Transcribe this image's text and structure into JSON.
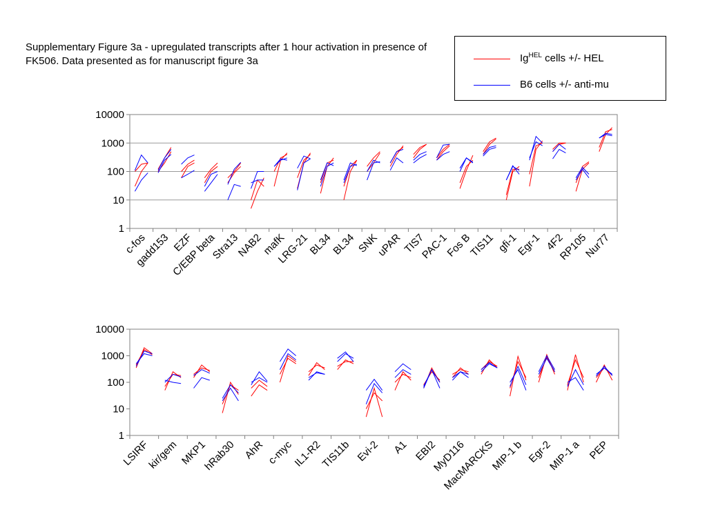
{
  "caption": "Supplementary Figure 3a - upregulated transcripts after 1 hour activation in presence of FK506. Data presented as for manuscript figure 3a",
  "legend": {
    "entries": [
      {
        "base": "Ig",
        "sup": "HEL",
        "rest": " cells +/- HEL",
        "color": "#ff0000"
      },
      {
        "base": "",
        "sup": "",
        "rest": "B6 cells +/- anti-mu",
        "color": "#0000ff"
      }
    ]
  },
  "chart_data": [
    {
      "type": "line",
      "scale": "log",
      "ylim": [
        1,
        10000
      ],
      "yticks": [
        1,
        10,
        100,
        1000,
        10000
      ],
      "grid": true,
      "colors": {
        "ig": "#ff0000",
        "b6": "#0000ff"
      },
      "categories": [
        "c-fos",
        "gadd153",
        "EZF",
        "C/EBP beta",
        "Stra13",
        "NAB2",
        "mafK",
        "LRG-21",
        "BL34",
        "BL34",
        "SNK",
        "uPAR",
        "TIS7",
        "PAC-1",
        "Fos B",
        "TIS11",
        "gfi-1",
        "Egr-1",
        "4F2",
        "RP105",
        "Nur77"
      ],
      "series": [
        {
          "group": "ig",
          "values": [
            [
              100,
              180,
              200
            ],
            [
              100,
              200,
              500
            ],
            [
              100,
              180,
              250
            ],
            [
              40,
              100,
              150
            ],
            [
              40,
              90,
              150
            ],
            [
              5,
              20,
              60
            ],
            [
              30,
              250,
              450
            ],
            [
              25,
              200,
              450
            ],
            [
              17,
              150,
              300
            ],
            [
              10,
              100,
              250
            ],
            [
              100,
              200,
              450
            ],
            [
              150,
              400,
              800
            ],
            [
              300,
              600,
              900
            ],
            [
              250,
              500,
              800
            ],
            [
              25,
              110,
              370
            ],
            [
              400,
              900,
              1400
            ],
            [
              10,
              100,
              150
            ],
            [
              30,
              600,
              1200
            ],
            [
              500,
              900,
              1000
            ],
            [
              20,
              120,
              200
            ],
            [
              500,
              2000,
              3500
            ]
          ]
        },
        {
          "group": "ig",
          "values": [
            [
              30,
              100,
              200
            ],
            [
              120,
              300,
              700
            ],
            [
              60,
              150,
              200
            ],
            [
              60,
              120,
              200
            ],
            [
              60,
              100,
              200
            ],
            [
              10,
              50,
              30
            ],
            [
              100,
              300,
              400
            ],
            [
              60,
              250,
              400
            ],
            [
              40,
              200,
              250
            ],
            [
              30,
              150,
              250
            ],
            [
              150,
              300,
              500
            ],
            [
              200,
              500,
              700
            ],
            [
              400,
              700,
              900
            ],
            [
              300,
              600,
              900
            ],
            [
              40,
              150,
              250
            ],
            [
              500,
              1100,
              1500
            ],
            [
              15,
              120,
              120
            ],
            [
              80,
              800,
              1000
            ],
            [
              600,
              1000,
              1000
            ],
            [
              40,
              150,
              220
            ],
            [
              700,
              2500,
              3000
            ]
          ]
        },
        {
          "group": "b6",
          "values": [
            [
              20,
              50,
              90
            ],
            [
              90,
              250,
              400
            ],
            [
              60,
              80,
              110
            ],
            [
              20,
              40,
              80
            ],
            [
              10,
              35,
              30
            ],
            [
              25,
              100,
              100
            ],
            [
              150,
              250,
              300
            ],
            [
              22,
              200,
              280
            ],
            [
              30,
              150,
              200
            ],
            [
              40,
              150,
              180
            ],
            [
              50,
              200,
              220
            ],
            [
              110,
              300,
              200
            ],
            [
              200,
              300,
              400
            ],
            [
              250,
              400,
              500
            ],
            [
              100,
              300,
              200
            ],
            [
              350,
              600,
              700
            ],
            [
              50,
              160,
              80
            ],
            [
              250,
              1700,
              1000
            ],
            [
              280,
              600,
              450
            ],
            [
              50,
              120,
              60
            ],
            [
              1500,
              2000,
              1800
            ]
          ]
        },
        {
          "group": "b6",
          "values": [
            [
              110,
              380,
              200
            ],
            [
              110,
              300,
              600
            ],
            [
              180,
              300,
              380
            ],
            [
              30,
              80,
              100
            ],
            [
              35,
              120,
              210
            ],
            [
              40,
              50,
              50
            ],
            [
              150,
              280,
              250
            ],
            [
              130,
              350,
              280
            ],
            [
              50,
              200,
              160
            ],
            [
              50,
              200,
              160
            ],
            [
              100,
              250,
              200
            ],
            [
              200,
              500,
              600
            ],
            [
              250,
              400,
              500
            ],
            [
              300,
              850,
              900
            ],
            [
              130,
              300,
              210
            ],
            [
              400,
              700,
              800
            ],
            [
              50,
              150,
              110
            ],
            [
              300,
              1100,
              800
            ],
            [
              500,
              900,
              600
            ],
            [
              60,
              140,
              80
            ],
            [
              1500,
              2200,
              2000
            ]
          ]
        }
      ]
    },
    {
      "type": "line",
      "scale": "log",
      "ylim": [
        1,
        10000
      ],
      "yticks": [
        1,
        10,
        100,
        1000,
        10000
      ],
      "grid": false,
      "colors": {
        "ig": "#ff0000",
        "b6": "#0000ff"
      },
      "categories": [
        "LSIRF",
        "kir/gem",
        "MKP1",
        "hRab30",
        "AhR",
        "c-myc",
        "IL1-R2",
        "TIS11b",
        "Evi-2",
        "A1",
        "EBI2",
        "MyD116",
        "MacMARCKS",
        "MIP-1 b",
        "Egr-2",
        "MIP-1 a",
        "PEP"
      ],
      "series": [
        {
          "group": "ig",
          "values": [
            [
              350,
              2000,
              1200
            ],
            [
              50,
              250,
              150
            ],
            [
              150,
              450,
              250
            ],
            [
              7,
              100,
              35
            ],
            [
              30,
              80,
              50
            ],
            [
              100,
              1000,
              600
            ],
            [
              180,
              550,
              300
            ],
            [
              300,
              700,
              500
            ],
            [
              5,
              60,
              5
            ],
            [
              50,
              250,
              120
            ],
            [
              60,
              350,
              100
            ],
            [
              150,
              350,
              200
            ],
            [
              200,
              700,
              350
            ],
            [
              30,
              950,
              120
            ],
            [
              100,
              1100,
              200
            ],
            [
              50,
              1100,
              100
            ],
            [
              100,
              450,
              120
            ]
          ]
        },
        {
          "group": "ig",
          "values": [
            [
              450,
              1700,
              1100
            ],
            [
              70,
              200,
              180
            ],
            [
              200,
              350,
              280
            ],
            [
              15,
              80,
              50
            ],
            [
              60,
              120,
              70
            ],
            [
              200,
              800,
              500
            ],
            [
              250,
              450,
              350
            ],
            [
              400,
              600,
              600
            ],
            [
              10,
              40,
              20
            ],
            [
              100,
              200,
              150
            ],
            [
              80,
              250,
              120
            ],
            [
              200,
              300,
              250
            ],
            [
              300,
              600,
              400
            ],
            [
              60,
              600,
              150
            ],
            [
              150,
              900,
              250
            ],
            [
              80,
              700,
              150
            ],
            [
              150,
              350,
              180
            ]
          ]
        },
        {
          "group": "b6",
          "values": [
            [
              500,
              1200,
              1000
            ],
            [
              120,
              100,
              90
            ],
            [
              60,
              150,
              120
            ],
            [
              20,
              60,
              20
            ],
            [
              80,
              250,
              110
            ],
            [
              600,
              1800,
              1000
            ],
            [
              120,
              250,
              200
            ],
            [
              800,
              1400,
              600
            ],
            [
              50,
              130,
              50
            ],
            [
              250,
              500,
              300
            ],
            [
              60,
              300,
              60
            ],
            [
              120,
              250,
              150
            ],
            [
              250,
              500,
              350
            ],
            [
              100,
              300,
              50
            ],
            [
              250,
              1000,
              300
            ],
            [
              100,
              150,
              50
            ],
            [
              200,
              350,
              200
            ]
          ]
        },
        {
          "group": "b6",
          "values": [
            [
              400,
              1500,
              1200
            ],
            [
              100,
              200,
              160
            ],
            [
              180,
              300,
              220
            ],
            [
              25,
              80,
              40
            ],
            [
              100,
              150,
              100
            ],
            [
              300,
              1200,
              700
            ],
            [
              150,
              230,
              200
            ],
            [
              600,
              1200,
              800
            ],
            [
              15,
              90,
              40
            ],
            [
              150,
              300,
              200
            ],
            [
              70,
              300,
              100
            ],
            [
              150,
              250,
              200
            ],
            [
              300,
              550,
              350
            ],
            [
              70,
              400,
              80
            ],
            [
              200,
              800,
              250
            ],
            [
              70,
              300,
              80
            ],
            [
              170,
              400,
              180
            ]
          ]
        }
      ]
    }
  ]
}
